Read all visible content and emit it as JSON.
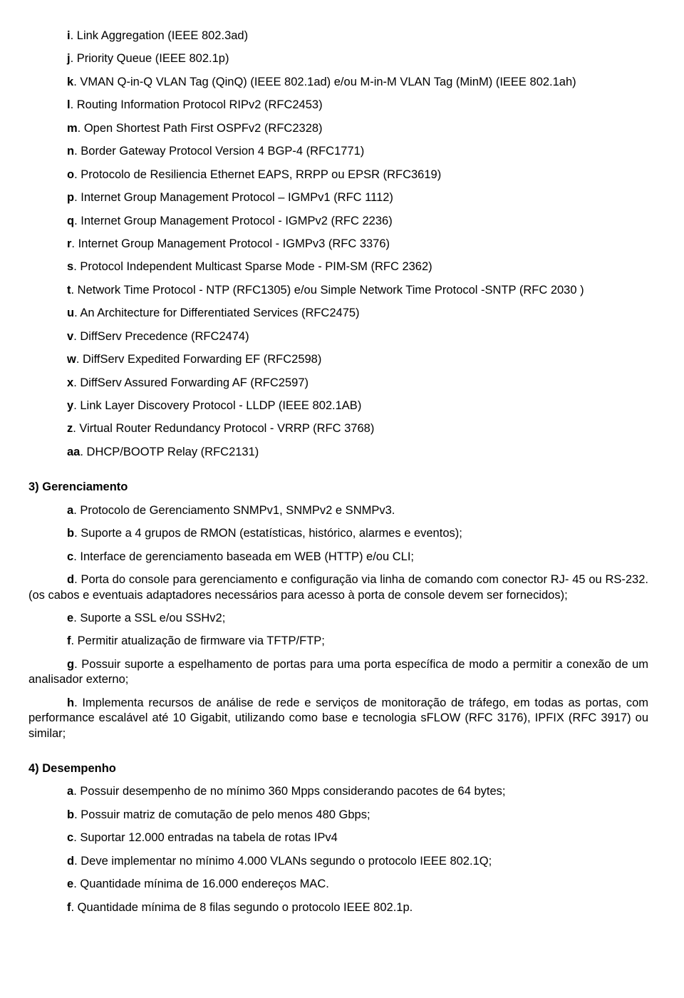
{
  "group1": {
    "items": [
      {
        "letter": "i",
        "text": ". Link Aggregation (IEEE 802.3ad)"
      },
      {
        "letter": "j",
        "text": ". Priority Queue (IEEE 802.1p)"
      },
      {
        "letter": "k",
        "text": ". VMAN Q-in-Q VLAN Tag (QinQ) (IEEE 802.1ad) e/ou M-in-M VLAN Tag (MinM) (IEEE 802.1ah)",
        "wrap": true
      },
      {
        "letter": "l",
        "text": ". Routing Information Protocol RIPv2 (RFC2453)"
      },
      {
        "letter": "m",
        "text": ". Open Shortest Path First OSPFv2 (RFC2328)"
      },
      {
        "letter": "n",
        "text": ". Border Gateway Protocol Version 4 BGP-4 (RFC1771)"
      },
      {
        "letter": "o",
        "text": ". Protocolo de Resiliencia Ethernet EAPS, RRPP ou EPSR (RFC3619)"
      },
      {
        "letter": "p",
        "text": ". Internet Group Management Protocol – IGMPv1 (RFC 1112)"
      },
      {
        "letter": "q",
        "text": ". Internet Group Management Protocol - IGMPv2 (RFC 2236)"
      },
      {
        "letter": "r",
        "text": ". Internet Group Management Protocol - IGMPv3 (RFC 3376)"
      },
      {
        "letter": "s",
        "text": ". Protocol Independent Multicast Sparse Mode - PIM-SM (RFC 2362)"
      },
      {
        "letter": "t",
        "text": ". Network Time Protocol - NTP (RFC1305) e/ou Simple Network Time Protocol -SNTP (RFC 2030 )",
        "wrap": true
      },
      {
        "letter": "u",
        "text": ". An Architecture for Differentiated Services  (RFC2475)"
      },
      {
        "letter": "v",
        "text": ". DiffServ Precedence (RFC2474)"
      },
      {
        "letter": "w",
        "text": ". DiffServ Expedited Forwarding EF (RFC2598)"
      },
      {
        "letter": "x",
        "text": ". DiffServ Assured Forwarding AF (RFC2597)"
      },
      {
        "letter": "y",
        "text": ". Link Layer Discovery Protocol - LLDP (IEEE 802.1AB)"
      },
      {
        "letter": "z",
        "text": ". Virtual Router Redundancy Protocol - VRRP (RFC 3768)"
      },
      {
        "letter": "aa",
        "text": ". DHCP/BOOTP Relay (RFC2131)"
      }
    ]
  },
  "section3": {
    "heading": "3) Gerenciamento",
    "items": [
      {
        "letter": "a",
        "text": ". Protocolo de Gerenciamento SNMPv1, SNMPv2 e SNMPv3."
      },
      {
        "letter": "b",
        "text": ". Suporte a 4 grupos de RMON (estatísticas, histórico, alarmes e eventos);"
      },
      {
        "letter": "c",
        "text": ". Interface de gerenciamento baseada em WEB (HTTP) e/ou CLI;"
      },
      {
        "letter": "d",
        "text": ". Porta do console para gerenciamento e configuração via linha de comando com conector RJ- 45 ou RS-232. (os cabos e eventuais adaptadores necessários para acesso à porta de console devem ser fornecidos);",
        "wrap": true,
        "justify": true
      },
      {
        "letter": "e",
        "text": ". Suporte a SSL e/ou SSHv2;"
      },
      {
        "letter": "f",
        "text": ". Permitir atualização de firmware via TFTP/FTP;"
      },
      {
        "letter": "g",
        "text": ". Possuir suporte a espelhamento de portas para uma porta específica de modo a permitir a conexão de um analisador externo;",
        "wrap": true,
        "justify": true
      },
      {
        "letter": "h",
        "text": ". Implementa recursos de análise de rede e serviços de monitoração de tráfego, em todas as portas, com performance escalável até 10 Gigabit, utilizando como base e tecnologia sFLOW (RFC 3176), IPFIX (RFC 3917) ou similar;",
        "wrap": true,
        "justify": true
      }
    ]
  },
  "section4": {
    "heading": "4) Desempenho",
    "items": [
      {
        "letter": "a",
        "text": ". Possuir desempenho de no mínimo 360 Mpps considerando pacotes de 64 bytes;"
      },
      {
        "letter": "b",
        "text": ". Possuir matriz de comutação de pelo menos 480 Gbps;"
      },
      {
        "letter": "c",
        "text": ". Suportar 12.000 entradas na tabela de rotas IPv4"
      },
      {
        "letter": "d",
        "text": ". Deve implementar no mínimo 4.000 VLANs segundo o protocolo IEEE 802.1Q;"
      },
      {
        "letter": "e",
        "text": ". Quantidade mínima de 16.000 endereços MAC."
      },
      {
        "letter": "f",
        "text": ". Quantidade mínima de 8 filas segundo o protocolo IEEE 802.1p."
      }
    ]
  }
}
